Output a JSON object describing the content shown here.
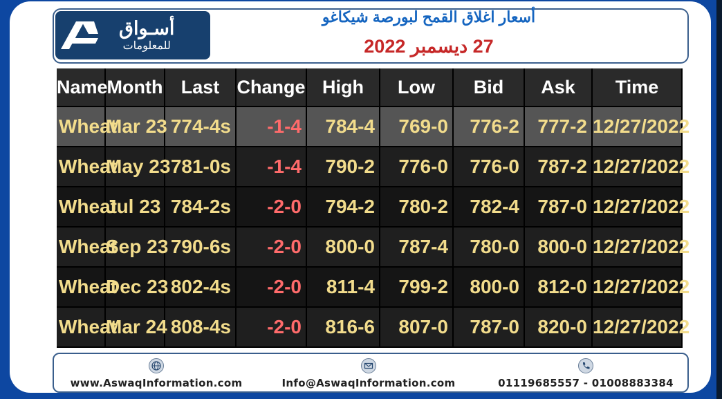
{
  "logo": {
    "line1": "أسـواق",
    "line2": "للمعلومات"
  },
  "header": {
    "title": "أسعار اغلاق القمح لبورصة شيكاغو",
    "date": "27 ديسمبر 2022"
  },
  "table": {
    "columns": [
      "Name",
      "Month",
      "Last",
      "Change",
      "High",
      "Low",
      "Bid",
      "Ask",
      "Time"
    ],
    "rows": [
      [
        "Wheat",
        "Mar 23",
        "774-4s",
        "-1-4",
        "784-4",
        "769-0",
        "776-2",
        "777-2",
        "12/27/2022"
      ],
      [
        "Wheat",
        "May 23",
        "781-0s",
        "-1-4",
        "790-2",
        "776-0",
        "776-0",
        "787-2",
        "12/27/2022"
      ],
      [
        "Wheat",
        "Jul 23",
        "784-2s",
        "-2-0",
        "794-2",
        "780-2",
        "782-4",
        "787-0",
        "12/27/2022"
      ],
      [
        "Wheat",
        "Sep 23",
        "790-6s",
        "-2-0",
        "800-0",
        "787-4",
        "780-0",
        "800-0",
        "12/27/2022"
      ],
      [
        "Wheat",
        "Dec 23",
        "802-4s",
        "-2-0",
        "811-4",
        "799-2",
        "800-0",
        "812-0",
        "12/27/2022"
      ],
      [
        "Wheat",
        "Mar 24",
        "808-4s",
        "-2-0",
        "816-6",
        "807-0",
        "787-0",
        "820-0",
        "12/27/2022"
      ]
    ]
  },
  "footer": {
    "website": "www.AswaqInformation.com",
    "email": "Info@AswaqInformation.com",
    "phones": "01119685557 - 01008883384",
    "icons": [
      "globe-icon",
      "mail-icon",
      "phone-icon"
    ]
  },
  "colors": {
    "brand": "#17406e",
    "title": "#1565c0",
    "date": "#c62828",
    "value_text": "#f2dc8c",
    "change_text": "#ff6b6b"
  }
}
